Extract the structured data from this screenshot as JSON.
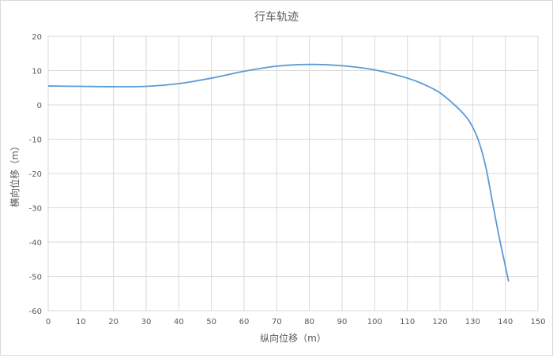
{
  "chart_data": {
    "type": "line",
    "title": "行车轨迹",
    "xlabel": "纵向位移（m）",
    "ylabel": "横向位移（m）",
    "xlim": [
      0,
      150
    ],
    "ylim": [
      -60,
      20
    ],
    "xticks": [
      "0",
      "10",
      "20",
      "30",
      "40",
      "50",
      "60",
      "70",
      "80",
      "90",
      "100",
      "110",
      "120",
      "130",
      "140",
      "150"
    ],
    "yticks": [
      "20",
      "10",
      "0",
      "-10",
      "-20",
      "-30",
      "-40",
      "-50",
      "-60"
    ],
    "grid": true,
    "line_color": "#5b9bd5",
    "series": [
      {
        "x": [
          0,
          10,
          20,
          30,
          40,
          50,
          60,
          70,
          80,
          90,
          100,
          110,
          115,
          120,
          125,
          128,
          130,
          132,
          134,
          136,
          138,
          140,
          141
        ],
        "y": [
          5.5,
          5.4,
          5.3,
          5.4,
          6.2,
          7.8,
          9.8,
          11.3,
          11.8,
          11.4,
          10.2,
          7.8,
          6.0,
          3.5,
          -0.5,
          -3.5,
          -6.5,
          -11.0,
          -18.0,
          -28.0,
          -38.0,
          -47.0,
          -51.5
        ]
      }
    ]
  }
}
